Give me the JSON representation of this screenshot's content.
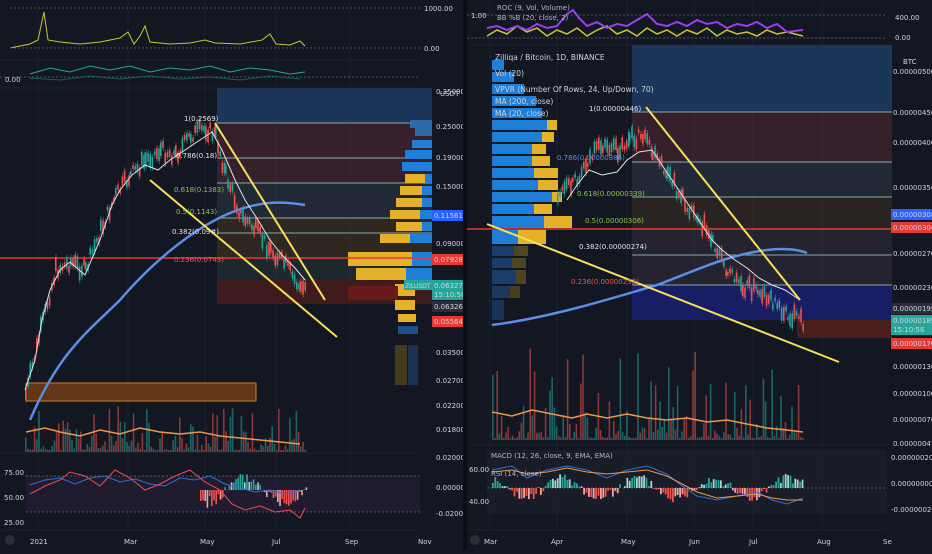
{
  "colors": {
    "bg": "#131722",
    "grid": "#1e222d",
    "up": "#26a69a",
    "down": "#ef5350",
    "wedge": "#f7e05a",
    "ma200": "#5b8ee6",
    "ma20": "#e0e3eb",
    "red_line": "#e53935",
    "rsi_red": "#ef4a5a",
    "rsi_blue": "#2f6fd6",
    "profile_blue": "#1f7fd8",
    "profile_yellow": "#e6b12a",
    "vol_orange": "#f0964a",
    "roc_purple": "#9b3df0",
    "roc_yellow": "#c8c43a"
  },
  "left": {
    "top_ind": {
      "max_label": "1000.00",
      "zero_label": "0.00"
    },
    "osc": {
      "zero_label": "0.00"
    },
    "price_axis": {
      "unit": "USDT",
      "ticks": [
        "0.35000",
        "0.25000",
        "0.19000",
        "0.15000",
        "0.11561",
        "0.09000",
        "0.07928",
        "0.06327",
        "0.06326",
        "0.05564",
        "0.04500",
        "0.03500",
        "0.02700",
        "0.02200",
        "0.01800"
      ]
    },
    "fib_labels": [
      "1(0.2569)",
      "0.786(0.18)",
      "0.618(0.1383)",
      "0.5(0.1143)",
      "0.382(0.09#)",
      "0.236(0.0743)"
    ],
    "price_badges": [
      {
        "text": "0.11561",
        "bg": "#2962ff"
      },
      {
        "text": "0.07928",
        "bg": "#e53935"
      },
      {
        "text": "ZILUSDT",
        "bg": "#26a69a"
      },
      {
        "text": "0.06327",
        "bg": "#26a69a"
      },
      {
        "text": "15:10:56",
        "bg": "#26a69a"
      },
      {
        "text": "0.06326",
        "bg": "#2a2e39"
      },
      {
        "text": "0.05564",
        "bg": "#e53935"
      }
    ],
    "rsi": {
      "ticks": [
        "75.00",
        "50.00",
        "25.00"
      ],
      "right_ticks": [
        "0.02000",
        "0.00000",
        "-0.02000"
      ]
    },
    "time_axis": [
      "2021",
      "Mar",
      "May",
      "Jul",
      "Sep",
      "Nov"
    ]
  },
  "right": {
    "top_ind": {
      "roc_label": "ROC (9, Vol, Volume)",
      "bb_label": "BB %B (20, close, 2)",
      "left_val": "1.00",
      "right_ticks": [
        "400.00",
        "0.00"
      ]
    },
    "legend": [
      "Zilliqa / Bitcoin, 1D, BINANCE",
      "Vol (20)",
      "VPVR (Number Of Rows, 24, Up/Down, 70)",
      "MA (200, close)",
      "MA (20, close)"
    ],
    "price_axis": {
      "unit": "BTC",
      "ticks": [
        "0.00000500",
        "0.00000450",
        "0.00000400",
        "0.00000350",
        "0.00000308",
        "0.00000304",
        "0.00000270",
        "0.00000230",
        "0.00000195",
        "0.00000189",
        "0.00000170",
        "0.00000130",
        "0.00000100",
        "0.00000070",
        "0.00000047"
      ]
    },
    "fib_labels": [
      "1(0.00000446)",
      "0.786(0.00000386)",
      "0.618(0.00000339)",
      "0.5(0.00000306)",
      "0.382(0.00000274)",
      "0.236(0.00000233)"
    ],
    "price_badges": [
      {
        "text": "0.00000308",
        "bg": "#2962ff"
      },
      {
        "text": "0.00000304",
        "bg": "#e53935"
      },
      {
        "text": "0.00000195",
        "bg": "#2a2e39"
      },
      {
        "text": "0.00000189",
        "bg": "#26a69a"
      },
      {
        "text": "15:10:56",
        "bg": "#26a69a"
      },
      {
        "text": "0.00000170",
        "bg": "#e53935"
      }
    ],
    "macd": {
      "macd_label": "MACD (12, 26, close, 9, EMA, EMA)",
      "rsi_label": "RSI (14, close)",
      "left_ticks": [
        "60.00",
        "40.00"
      ],
      "right_ticks": [
        "0.00000020",
        "0.00000000",
        "-0.00000020"
      ]
    },
    "time_axis": [
      "Mar",
      "Apr",
      "May",
      "Jun",
      "Jul",
      "Aug",
      "Se"
    ]
  }
}
